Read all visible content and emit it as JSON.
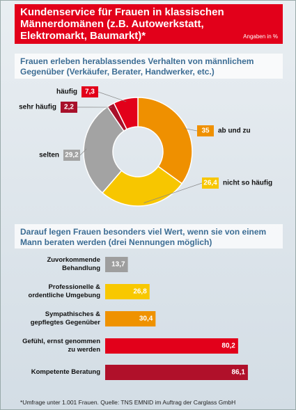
{
  "header": {
    "title": "Kundenservice für Frauen in klassischen Männerdomänen (z.B. Autowerkstatt, Elektromarkt, Baumarkt)*",
    "unit_note": "Angaben in %"
  },
  "chart_data": [
    {
      "type": "pie",
      "title": "Frauen erleben herablassendes Verhalten von männlichem Gegenüber (Verkäufer, Berater, Handwerker, etc.)",
      "categories": [
        "ab und zu",
        "nicht so häufig",
        "selten",
        "sehr häufig",
        "häufig"
      ],
      "values": [
        35,
        26.4,
        29.2,
        2.2,
        7.3
      ],
      "value_labels": [
        "35",
        "26,4",
        "29,2",
        "2,2",
        "7,3"
      ],
      "colors": [
        "#ef9000",
        "#f7c600",
        "#a3a3a3",
        "#a8102a",
        "#e2001a"
      ]
    },
    {
      "type": "bar",
      "title": "Darauf legen Frauen besonders viel Wert, wenn sie von einem Mann beraten werden (drei Nennungen möglich)",
      "categories": [
        "Zuvorkommende Behandlung",
        "Professionelle & ordentliche Umgebung",
        "Sympathisches & gepflegtes Gegenüber",
        "Gefühl, ernst genommen zu werden",
        "Kompetente Beratung"
      ],
      "values": [
        13.7,
        26.8,
        30.4,
        80.2,
        86.1
      ],
      "value_labels": [
        "13,7",
        "26,8",
        "30,4",
        "80,2",
        "86,1"
      ],
      "colors": [
        "#9e9e9e",
        "#f8c800",
        "#ef9200",
        "#e2001a",
        "#b0102a"
      ],
      "xlim": [
        0,
        100
      ]
    }
  ],
  "footnote": "*Umfrage unter 1.001 Frauen. Quelle: TNS EMNID im Auftrag der Carglass GmbH"
}
